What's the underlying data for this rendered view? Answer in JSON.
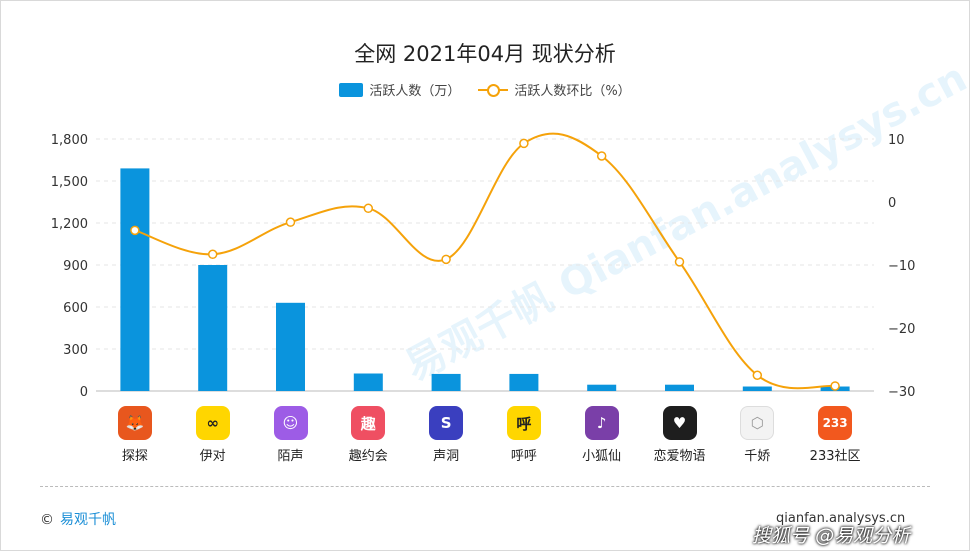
{
  "title": "全网 2021年04月 现状分析",
  "legend": {
    "bar_label": "活跃人数（万）",
    "line_label": "活跃人数环比（%）"
  },
  "chart_data": {
    "type": "bar+line",
    "title": "全网 2021年04月 现状分析",
    "categories": [
      "探探",
      "伊对",
      "陌声",
      "趣约会",
      "声洞",
      "呼呼",
      "小狐仙",
      "恋爱物语",
      "千娇",
      "233社区"
    ],
    "series": [
      {
        "name": "活跃人数（万）",
        "type": "bar",
        "axis": "left",
        "values": [
          1590,
          900,
          630,
          125,
          122,
          122,
          45,
          45,
          32,
          32
        ]
      },
      {
        "name": "活跃人数环比（%）",
        "type": "line",
        "axis": "right",
        "values": [
          -4.5,
          -8.3,
          -3.2,
          -1.0,
          -9.1,
          9.3,
          7.3,
          -9.5,
          -27.5,
          -29.2
        ]
      }
    ],
    "y_left": {
      "ylim": [
        0,
        1800
      ],
      "ticks": [
        0,
        300,
        600,
        900,
        1200,
        1500,
        1800
      ],
      "tick_labels": [
        "0",
        "300",
        "600",
        "900",
        "1,200",
        "1,500",
        "1,800"
      ]
    },
    "y_right": {
      "ylim": [
        -30,
        10
      ],
      "ticks": [
        -30,
        -20,
        -10,
        0,
        10
      ],
      "tick_labels": [
        "−30",
        "−20",
        "−10",
        "0",
        "10"
      ]
    },
    "colors": {
      "bar": "#0a94dd",
      "line": "#f5a20a",
      "grid": "#e6e6e6"
    },
    "grid": true,
    "legend_position": "top-center"
  },
  "apps": [
    {
      "icon": "fox-face-icon",
      "glyph": "🦊",
      "bg": "#e8571e"
    },
    {
      "icon": "infinity-icon",
      "glyph": "∞",
      "bg": "#ffd600"
    },
    {
      "icon": "chat-bubble-icon",
      "glyph": "☺",
      "bg": "#9d5ce6"
    },
    {
      "icon": "qu-text-icon",
      "glyph": "趣",
      "bg": "#ef4f62"
    },
    {
      "icon": "s-letter-icon",
      "glyph": "S",
      "bg": "#3a3fbf"
    },
    {
      "icon": "hu-text-icon",
      "glyph": "呼",
      "bg": "#ffd600"
    },
    {
      "icon": "fox-outline-icon",
      "glyph": "♪",
      "bg": "#7a3fa8"
    },
    {
      "icon": "heart-hands-icon",
      "glyph": "♥",
      "bg": "#1e1e1e"
    },
    {
      "icon": "cube-icon",
      "glyph": "⬡",
      "bg": "#f3f3f3"
    },
    {
      "icon": "number-233-icon",
      "glyph": "233",
      "bg": "#f2581e"
    }
  ],
  "footer": {
    "brand": "易观千帆",
    "copyright_mark": "©",
    "site": "qianfan.analysys.cn",
    "credit": "@易观分析",
    "credit_prefix": "搜狐号"
  },
  "watermark": "易观千帆 Qianfan.analysys.cn"
}
